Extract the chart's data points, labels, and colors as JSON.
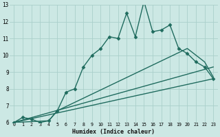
{
  "xlabel": "Humidex (Indice chaleur)",
  "ylabel": "",
  "bg_color": "#cce8e4",
  "grid_color": "#aacfca",
  "line_color": "#1f6b5e",
  "xlim": [
    -0.5,
    23.5
  ],
  "ylim": [
    6,
    13
  ],
  "xticks": [
    0,
    1,
    2,
    3,
    4,
    5,
    6,
    7,
    8,
    9,
    10,
    11,
    12,
    13,
    14,
    15,
    16,
    17,
    18,
    19,
    20,
    21,
    22,
    23
  ],
  "yticks": [
    6,
    7,
    8,
    9,
    10,
    11,
    12,
    13
  ],
  "series1_x": [
    0,
    1,
    2,
    3,
    4,
    5,
    6,
    7,
    8,
    9,
    10,
    11,
    12,
    13,
    14,
    15,
    16,
    17,
    18,
    19,
    20,
    21,
    22,
    23
  ],
  "series1_y": [
    6.0,
    6.3,
    6.2,
    6.0,
    6.1,
    6.7,
    7.8,
    8.0,
    9.3,
    10.0,
    10.4,
    11.1,
    11.0,
    12.5,
    11.1,
    13.2,
    11.4,
    11.5,
    11.8,
    10.4,
    10.1,
    9.6,
    9.3,
    8.6
  ],
  "series2_x": [
    0,
    4,
    5,
    20,
    22,
    23
  ],
  "series2_y": [
    6.0,
    6.1,
    6.7,
    10.4,
    9.6,
    8.7
  ],
  "series3_x": [
    0,
    23
  ],
  "series3_y": [
    6.0,
    9.3
  ],
  "series4_x": [
    0,
    23
  ],
  "series4_y": [
    6.0,
    8.6
  ],
  "marker": "D",
  "marker_size": 2.5,
  "linewidth": 1.0
}
